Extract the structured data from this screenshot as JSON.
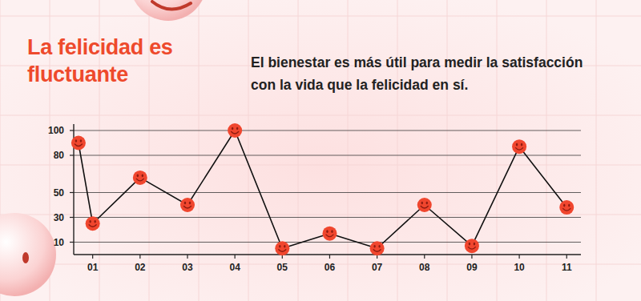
{
  "chart_data": {
    "type": "line",
    "title": "La felicidad es fluctuante",
    "subtitle": "El bienestar es más útil para medir la satisfacción con la vida que la felicidad en sí.",
    "x": [
      0.7,
      1,
      2,
      3,
      4,
      5,
      6,
      7,
      8,
      9,
      10,
      11
    ],
    "values": [
      90,
      25,
      62,
      40,
      100,
      5,
      17,
      5,
      40,
      7,
      87,
      38
    ],
    "color": "#f0462e",
    "marker": "smiley",
    "xlim": [
      0.6,
      11.3
    ],
    "xticks": [
      {
        "value": 1,
        "label": "01"
      },
      {
        "value": 2,
        "label": "02"
      },
      {
        "value": 3,
        "label": "03"
      },
      {
        "value": 4,
        "label": "04"
      },
      {
        "value": 5,
        "label": "05"
      },
      {
        "value": 6,
        "label": "06"
      },
      {
        "value": 7,
        "label": "07"
      },
      {
        "value": 8,
        "label": "08"
      },
      {
        "value": 9,
        "label": "09"
      },
      {
        "value": 10,
        "label": "10"
      },
      {
        "value": 11,
        "label": "11"
      }
    ],
    "ylim": [
      0,
      100
    ],
    "yticks": [
      10,
      30,
      50,
      80,
      100
    ],
    "grid": true
  }
}
